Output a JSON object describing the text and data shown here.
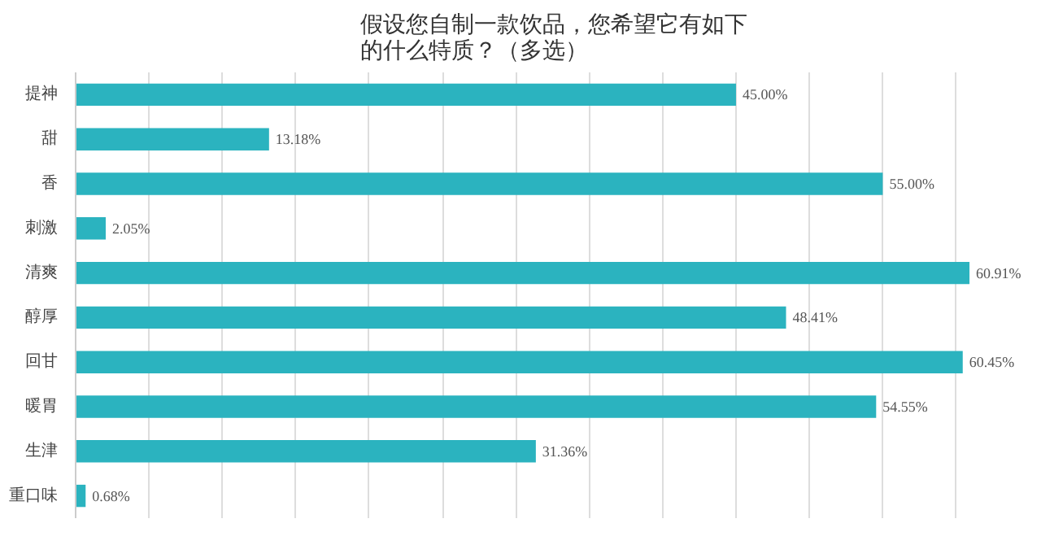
{
  "chart_data": {
    "type": "bar",
    "orientation": "horizontal",
    "title": "假设您自制一款饮品，您希望它有如下的什么特质？（多选）",
    "categories": [
      "提神",
      "甜",
      "香",
      "刺激",
      "清爽",
      "醇厚",
      "回甘",
      "暖胃",
      "生津",
      "重口味"
    ],
    "values": [
      45.0,
      13.18,
      55.0,
      2.05,
      60.91,
      48.41,
      60.45,
      54.55,
      31.36,
      0.68
    ],
    "value_labels": [
      "45.00%",
      "13.18%",
      "55.00%",
      "2.05%",
      "60.91%",
      "48.41%",
      "60.45%",
      "54.55%",
      "31.36%",
      "0.68%"
    ],
    "color": "#2bb3bf",
    "xticks": [
      {
        "value": 0,
        "label": null
      },
      {
        "value": 5,
        "label": null
      },
      {
        "value": 10,
        "label": null
      },
      {
        "value": 15,
        "label": null
      },
      {
        "value": 20,
        "label": null
      },
      {
        "value": 25,
        "label": null
      },
      {
        "value": 30,
        "label": null
      },
      {
        "value": 35,
        "label": null
      },
      {
        "value": 40,
        "label": null
      },
      {
        "value": 45,
        "label": null
      },
      {
        "value": 50,
        "label": null
      },
      {
        "value": 55,
        "label": null
      },
      {
        "value": 60,
        "label": null
      }
    ],
    "grid": "x",
    "tick_labels": "y"
  }
}
